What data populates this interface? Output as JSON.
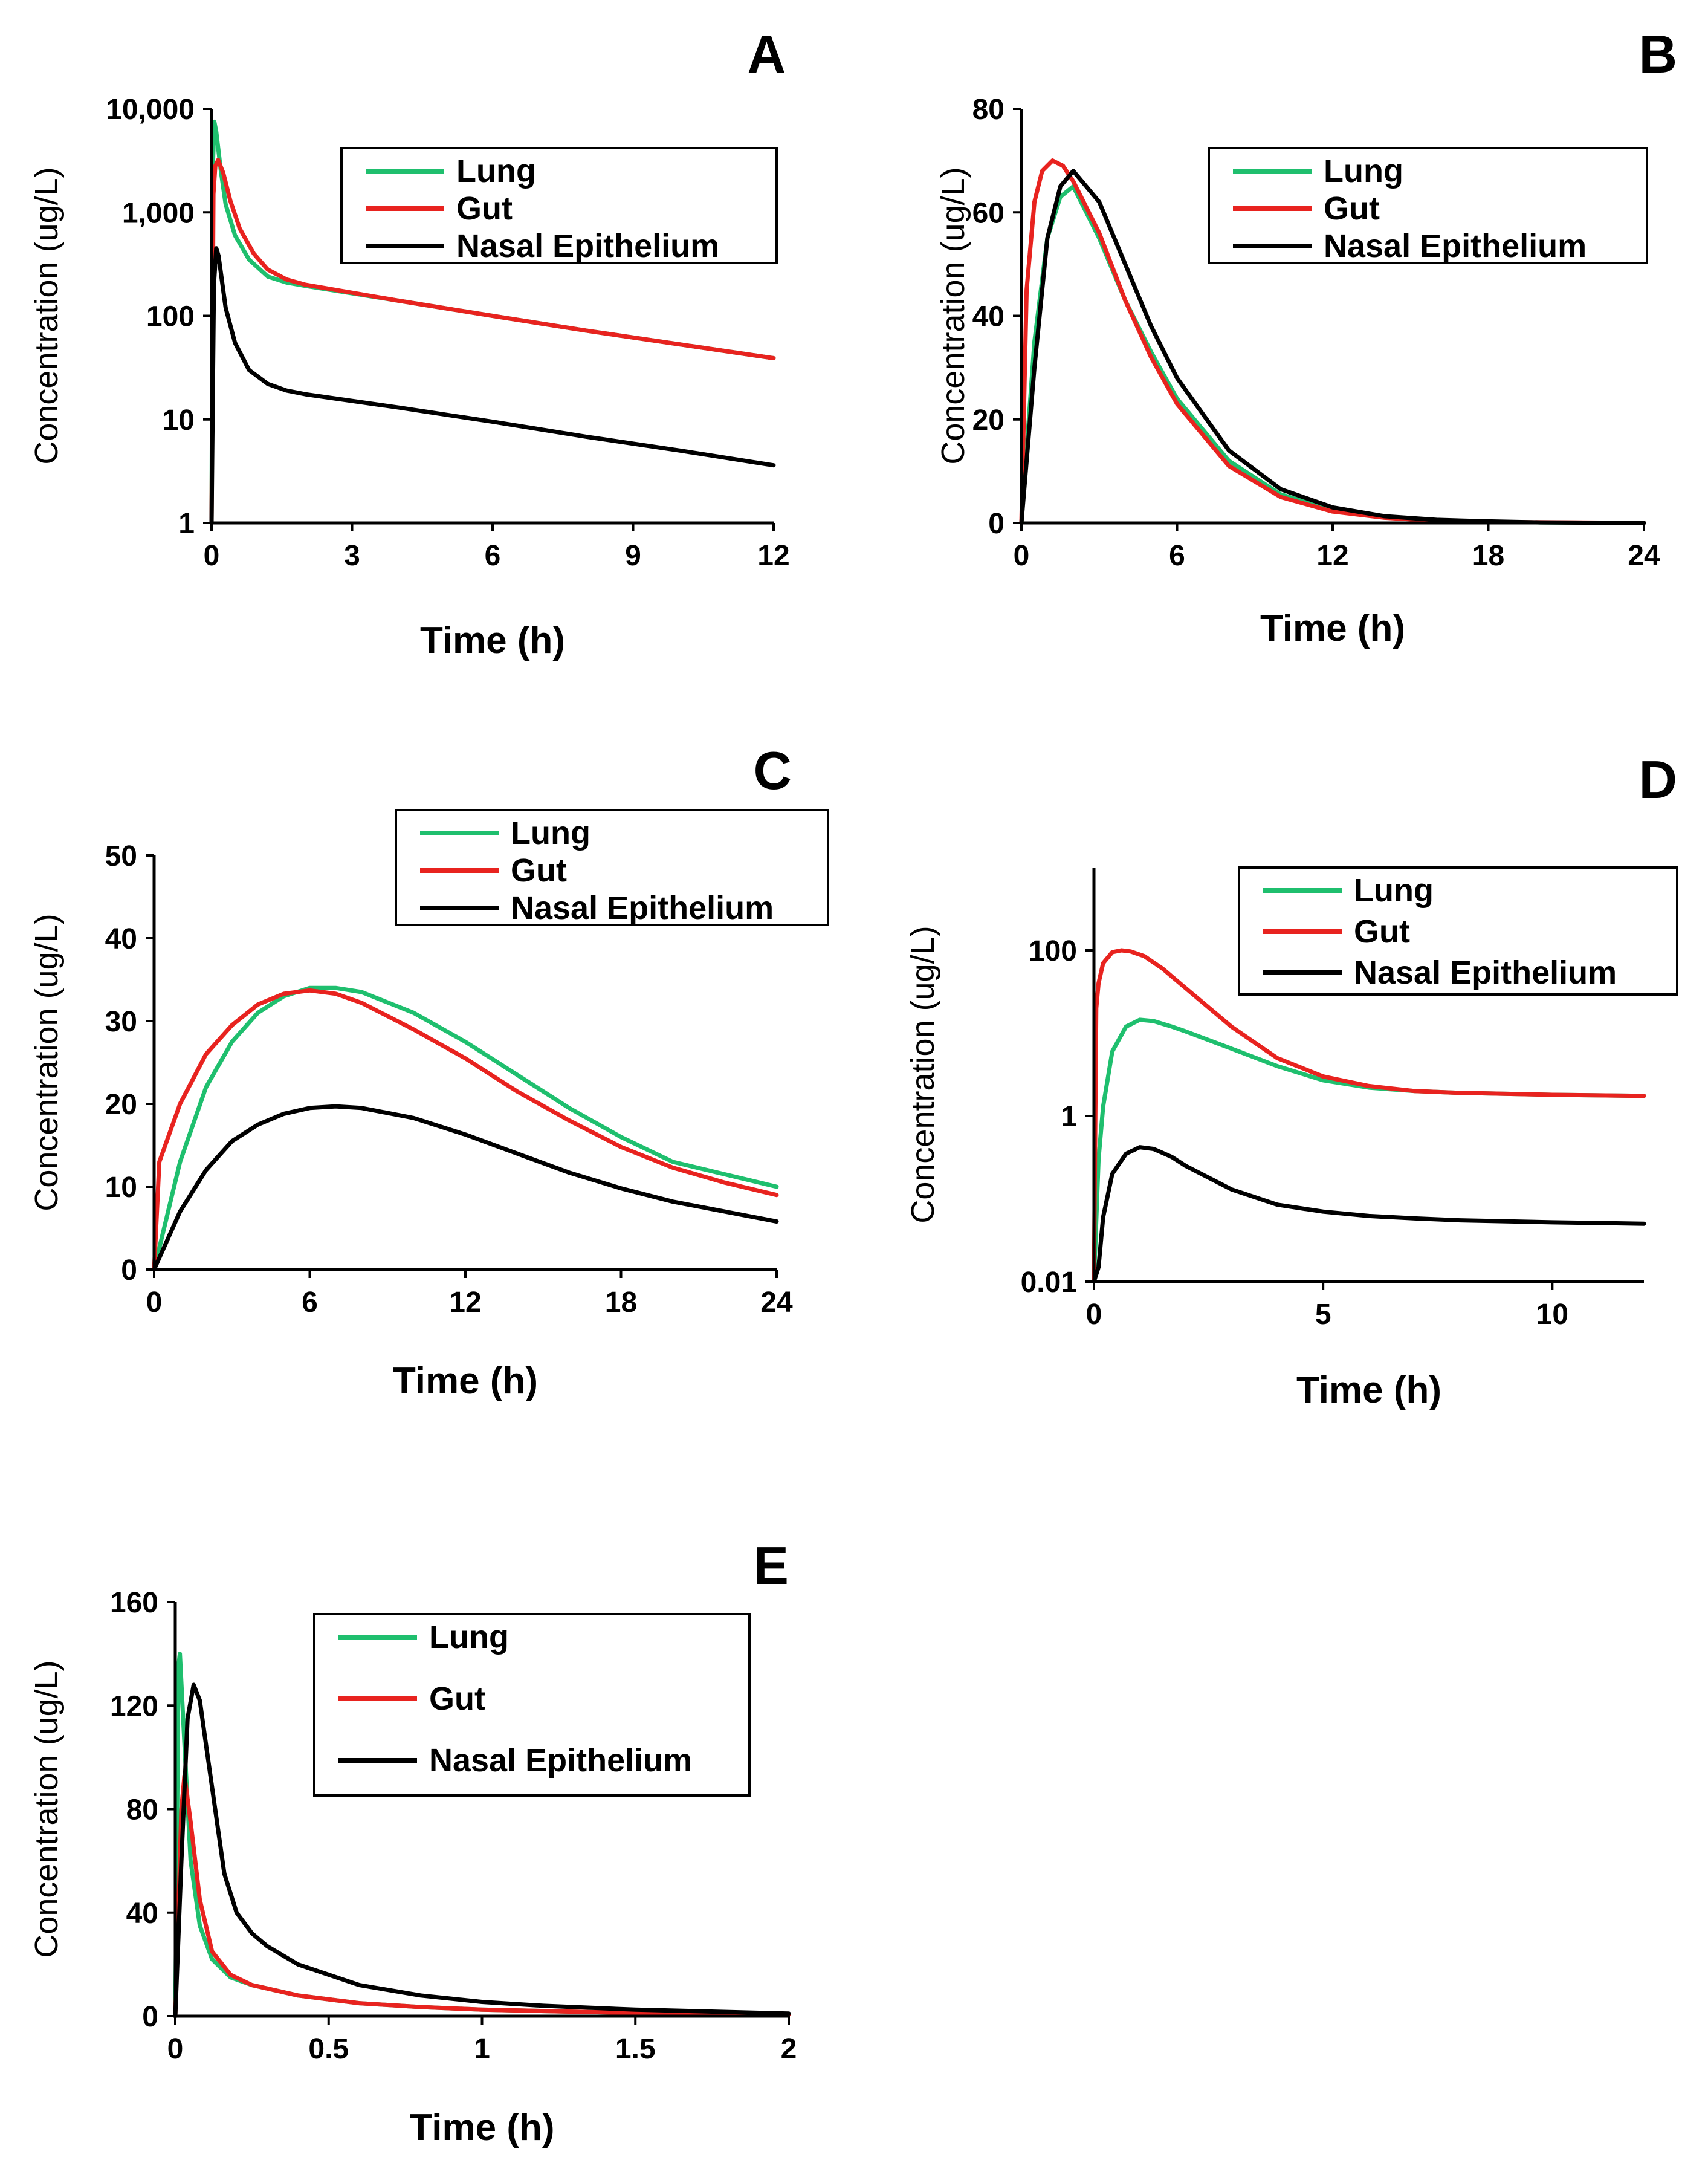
{
  "chart_data": [
    {
      "panel": "A",
      "type": "line",
      "yscale": "log",
      "xlabel": "Time (h)",
      "ylabel": "Concentration (ug/L)",
      "xlim": [
        0,
        12
      ],
      "ylim": [
        1,
        10000
      ],
      "xticks": [
        "0",
        "3",
        "6",
        "9",
        "12"
      ],
      "yticks": [
        "1",
        "10",
        "100",
        "1,000",
        "10,000"
      ],
      "legend": [
        "Lung",
        "Gut",
        "Nasal Epithelium"
      ],
      "series": [
        {
          "name": "Lung",
          "color": "#1fbf6e",
          "x": [
            0,
            0.03,
            0.06,
            0.1,
            0.2,
            0.3,
            0.5,
            0.8,
            1.2,
            1.6,
            2,
            4,
            6,
            8,
            10,
            12
          ],
          "y": [
            1,
            3000,
            7500,
            6000,
            2500,
            1200,
            600,
            350,
            240,
            210,
            195,
            140,
            100,
            72,
            53,
            39
          ]
        },
        {
          "name": "Gut",
          "color": "#e8231f",
          "x": [
            0,
            0.04,
            0.08,
            0.14,
            0.25,
            0.4,
            0.6,
            0.9,
            1.2,
            1.6,
            2,
            4,
            6,
            8,
            10,
            12
          ],
          "y": [
            1,
            1500,
            2800,
            3200,
            2400,
            1300,
            700,
            400,
            280,
            225,
            200,
            140,
            100,
            72,
            53,
            39
          ]
        },
        {
          "name": "Nasal Epithelium",
          "color": "#000000",
          "x": [
            0,
            0.05,
            0.1,
            0.15,
            0.3,
            0.5,
            0.8,
            1.2,
            1.6,
            2,
            4,
            6,
            8,
            10,
            12
          ],
          "y": [
            1,
            200,
            450,
            380,
            120,
            55,
            30,
            22,
            19,
            17.5,
            13,
            9.5,
            6.8,
            5,
            3.6
          ]
        }
      ]
    },
    {
      "panel": "B",
      "type": "line",
      "yscale": "linear",
      "xlabel": "Time (h)",
      "ylabel": "Concentration (ug/L)",
      "xlim": [
        0,
        24
      ],
      "ylim": [
        0,
        80
      ],
      "xticks": [
        "0",
        "6",
        "12",
        "18",
        "24"
      ],
      "yticks": [
        "0",
        "20",
        "40",
        "60",
        "80"
      ],
      "legend": [
        "Lung",
        "Gut",
        "Nasal Epithelium"
      ],
      "series": [
        {
          "name": "Lung",
          "color": "#1fbf6e",
          "x": [
            0,
            0.5,
            1,
            1.5,
            2,
            3,
            4,
            5,
            6,
            8,
            10,
            12,
            14,
            16,
            18,
            20,
            24
          ],
          "y": [
            0,
            35,
            55,
            63,
            65,
            55,
            43,
            33,
            24,
            12,
            5.5,
            2.5,
            1.1,
            0.5,
            0.2,
            0.1,
            0
          ]
        },
        {
          "name": "Gut",
          "color": "#e8231f",
          "x": [
            0,
            0.2,
            0.5,
            0.8,
            1.2,
            1.6,
            2,
            3,
            4,
            5,
            6,
            8,
            10,
            12,
            14,
            16,
            18,
            24
          ],
          "y": [
            0,
            45,
            62,
            68,
            70,
            69,
            66,
            56,
            43,
            32,
            23,
            11,
            5,
            2.2,
            1,
            0.4,
            0.2,
            0
          ]
        },
        {
          "name": "Nasal Epithelium",
          "color": "#000000",
          "x": [
            0,
            0.5,
            1,
            1.5,
            2,
            3,
            4,
            5,
            6,
            8,
            10,
            12,
            14,
            16,
            18,
            20,
            24
          ],
          "y": [
            0,
            30,
            55,
            65,
            68,
            62,
            50,
            38,
            28,
            14,
            6.5,
            3,
            1.3,
            0.6,
            0.3,
            0.1,
            0
          ]
        }
      ]
    },
    {
      "panel": "C",
      "type": "line",
      "yscale": "linear",
      "xlabel": "Time (h)",
      "ylabel": "Concentration (ug/L)",
      "xlim": [
        0,
        24
      ],
      "ylim": [
        0,
        50
      ],
      "xticks": [
        "0",
        "6",
        "12",
        "18",
        "24"
      ],
      "yticks": [
        "0",
        "10",
        "20",
        "30",
        "40",
        "50"
      ],
      "legend": [
        "Lung",
        "Gut",
        "Nasal Epithelium"
      ],
      "series": [
        {
          "name": "Lung",
          "color": "#1fbf6e",
          "x": [
            0,
            1,
            2,
            3,
            4,
            5,
            6,
            7,
            8,
            10,
            12,
            14,
            16,
            18,
            20,
            22,
            24
          ],
          "y": [
            0,
            13,
            22,
            27.5,
            31,
            33,
            34,
            34,
            33.5,
            31,
            27.5,
            23.5,
            19.5,
            16,
            13,
            11.5,
            10
          ]
        },
        {
          "name": "Gut",
          "color": "#e8231f",
          "x": [
            0,
            0.2,
            1,
            2,
            3,
            4,
            5,
            6,
            7,
            8,
            10,
            12,
            14,
            16,
            18,
            20,
            22,
            24
          ],
          "y": [
            0,
            13,
            20,
            26,
            29.5,
            32,
            33.3,
            33.7,
            33.3,
            32.2,
            29,
            25.5,
            21.5,
            18,
            14.8,
            12.3,
            10.5,
            9
          ]
        },
        {
          "name": "Nasal Epithelium",
          "color": "#000000",
          "x": [
            0,
            1,
            2,
            3,
            4,
            5,
            6,
            7,
            8,
            10,
            12,
            14,
            16,
            18,
            20,
            22,
            24
          ],
          "y": [
            0,
            7,
            12,
            15.5,
            17.5,
            18.8,
            19.5,
            19.7,
            19.5,
            18.3,
            16.3,
            14,
            11.7,
            9.8,
            8.2,
            7,
            5.8
          ]
        }
      ]
    },
    {
      "panel": "D",
      "type": "line",
      "yscale": "log",
      "xlabel": "Time (h)",
      "ylabel": "Concentration (ug/L)",
      "xlim": [
        0,
        12
      ],
      "ylim": [
        0.01,
        1000
      ],
      "xticks": [
        "0",
        "5",
        "10"
      ],
      "yticks": [
        "0.01",
        "1",
        "100"
      ],
      "legend": [
        "Lung",
        "Gut",
        "Nasal Epithelium"
      ],
      "series": [
        {
          "name": "Lung",
          "color": "#1fbf6e",
          "x": [
            0,
            0.1,
            0.2,
            0.4,
            0.7,
            1,
            1.3,
            1.7,
            2,
            3,
            4,
            5,
            6,
            7,
            8,
            10,
            12
          ],
          "y": [
            0.01,
            0.3,
            1.3,
            6,
            12,
            14.5,
            14,
            12,
            10.5,
            6.5,
            4,
            2.7,
            2.2,
            2,
            1.9,
            1.8,
            1.75
          ]
        },
        {
          "name": "Gut",
          "color": "#e8231f",
          "x": [
            0,
            0.05,
            0.1,
            0.2,
            0.4,
            0.6,
            0.8,
            1.1,
            1.5,
            2,
            3,
            4,
            5,
            6,
            7,
            8,
            10,
            12
          ],
          "y": [
            0.01,
            20,
            40,
            70,
            95,
            100,
            97,
            85,
            60,
            35,
            12,
            5,
            3,
            2.3,
            2,
            1.9,
            1.8,
            1.75
          ]
        },
        {
          "name": "Nasal Epithelium",
          "color": "#000000",
          "x": [
            0,
            0.1,
            0.2,
            0.4,
            0.7,
            1,
            1.3,
            1.7,
            2,
            3,
            4,
            5,
            6,
            7,
            8,
            10,
            12
          ],
          "y": [
            0.01,
            0.015,
            0.06,
            0.2,
            0.35,
            0.42,
            0.4,
            0.32,
            0.25,
            0.13,
            0.085,
            0.07,
            0.062,
            0.058,
            0.055,
            0.052,
            0.05
          ]
        }
      ]
    },
    {
      "panel": "E",
      "type": "line",
      "yscale": "linear",
      "xlabel": "Time (h)",
      "ylabel": "Concentration (ug/L)",
      "xlim": [
        0,
        2
      ],
      "ylim": [
        0,
        160
      ],
      "xticks": [
        "0",
        "0.5",
        "1",
        "1.5",
        "2"
      ],
      "yticks": [
        "0",
        "40",
        "80",
        "120",
        "160"
      ],
      "legend": [
        "Lung",
        "Gut",
        "Nasal Epithelium"
      ],
      "series": [
        {
          "name": "Lung",
          "color": "#1fbf6e",
          "x": [
            0,
            0.005,
            0.01,
            0.015,
            0.03,
            0.05,
            0.08,
            0.12,
            0.18,
            0.25,
            0.4,
            0.6,
            0.8,
            1,
            1.5,
            2
          ],
          "y": [
            0,
            60,
            135,
            140,
            105,
            60,
            35,
            22,
            15,
            12,
            8,
            5,
            3.5,
            2.5,
            1.2,
            0.6
          ]
        },
        {
          "name": "Gut",
          "color": "#e8231f",
          "x": [
            0,
            0.01,
            0.02,
            0.03,
            0.05,
            0.08,
            0.12,
            0.18,
            0.25,
            0.4,
            0.6,
            0.8,
            1,
            1.5,
            2
          ],
          "y": [
            0,
            40,
            80,
            93,
            75,
            45,
            25,
            16,
            12,
            8,
            5,
            3.5,
            2.5,
            1.2,
            0.6
          ]
        },
        {
          "name": "Nasal Epithelium",
          "color": "#000000",
          "x": [
            0,
            0.02,
            0.04,
            0.06,
            0.08,
            0.1,
            0.13,
            0.16,
            0.2,
            0.25,
            0.3,
            0.4,
            0.6,
            0.8,
            1,
            1.2,
            1.5,
            2
          ],
          "y": [
            0,
            60,
            115,
            128,
            122,
            105,
            80,
            55,
            40,
            32,
            27,
            20,
            12,
            8,
            5.5,
            4,
            2.5,
            1
          ]
        }
      ]
    }
  ]
}
